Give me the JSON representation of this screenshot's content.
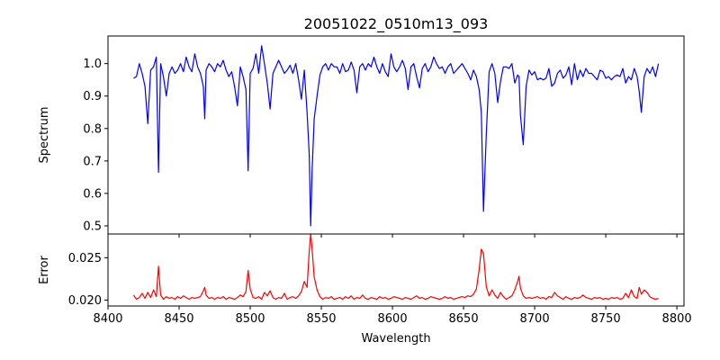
{
  "chart_data": [
    {
      "type": "line",
      "title": "20051022_0510m13_093",
      "xlabel": "",
      "ylabel": "Spectrum",
      "xlim": [
        8400,
        8805
      ],
      "ylim": [
        0.475,
        1.085
      ],
      "xticks": [
        8400,
        8450,
        8500,
        8550,
        8600,
        8650,
        8700,
        8750,
        8800
      ],
      "yticks": [
        0.5,
        0.6,
        0.7,
        0.8,
        0.9,
        1.0
      ],
      "ytick_labels": [
        "0.5",
        "0.6",
        "0.7",
        "0.8",
        "0.9",
        "1.0"
      ],
      "grid": false,
      "series": [
        {
          "color": "#0000ff",
          "x": [
            8418,
            8420,
            8422,
            8424,
            8426,
            8428,
            8430,
            8432,
            8434,
            8435.5,
            8437,
            8439,
            8441,
            8443,
            8445,
            8447,
            8449,
            8451,
            8453,
            8455,
            8457,
            8459,
            8461,
            8463,
            8465,
            8467,
            8468,
            8469,
            8471,
            8473,
            8475,
            8477,
            8479,
            8481,
            8483,
            8485,
            8487,
            8489,
            8491,
            8493,
            8495,
            8497,
            8498.5,
            8500,
            8502,
            8504,
            8506,
            8508,
            8510,
            8512,
            8514,
            8516,
            8518,
            8520,
            8522,
            8524,
            8526,
            8528,
            8530,
            8532,
            8534,
            8536,
            8538,
            8540,
            8541.5,
            8542.5,
            8543.5,
            8545,
            8547,
            8549,
            8551,
            8553,
            8555,
            8557,
            8559,
            8561,
            8563,
            8565,
            8567,
            8569,
            8571,
            8573,
            8575,
            8577,
            8579,
            8581,
            8583,
            8585,
            8587,
            8589,
            8591,
            8593,
            8595,
            8597,
            8599,
            8601,
            8603,
            8605,
            8607,
            8609,
            8611,
            8613,
            8615,
            8617,
            8619,
            8621,
            8623,
            8625,
            8627,
            8629,
            8631,
            8633,
            8635,
            8637,
            8639,
            8641,
            8643,
            8645,
            8647,
            8649,
            8651,
            8653,
            8655,
            8657,
            8659,
            8661,
            8662.5,
            8664,
            8666,
            8668,
            8670,
            8672,
            8674,
            8676,
            8678,
            8680,
            8682,
            8684,
            8686,
            8688,
            8689,
            8690,
            8692,
            8694,
            8696,
            8698,
            8700,
            8702,
            8704,
            8706,
            8708,
            8710,
            8712,
            8714,
            8716,
            8718,
            8720,
            8722,
            8724,
            8726,
            8728,
            8730,
            8732,
            8734,
            8736,
            8738,
            8740,
            8742,
            8744,
            8746,
            8748,
            8750,
            8752,
            8754,
            8756,
            8758,
            8760,
            8762,
            8764,
            8766,
            8768,
            8770,
            8772,
            8773.5,
            8775,
            8777,
            8779,
            8781,
            8783,
            8785,
            8787
          ],
          "y": [
            0.955,
            0.96,
            1.0,
            0.97,
            0.93,
            0.815,
            0.98,
            0.99,
            1.02,
            0.665,
            1.0,
            0.96,
            0.9,
            0.97,
            0.99,
            0.97,
            0.98,
            1.0,
            0.975,
            1.02,
            0.99,
            0.975,
            1.03,
            0.99,
            0.97,
            0.93,
            0.83,
            0.98,
            1.0,
            0.99,
            0.975,
            1.0,
            0.99,
            1.01,
            0.98,
            0.96,
            0.975,
            0.93,
            0.87,
            0.99,
            0.96,
            0.92,
            0.67,
            0.97,
            0.985,
            1.03,
            0.97,
            1.055,
            1.0,
            0.94,
            0.86,
            0.97,
            0.99,
            1.01,
            0.99,
            0.97,
            0.98,
            0.995,
            0.97,
            1.0,
            0.95,
            0.89,
            0.98,
            0.85,
            0.72,
            0.5,
            0.67,
            0.83,
            0.9,
            0.965,
            0.99,
            1.0,
            0.98,
            1.0,
            0.99,
            0.99,
            0.97,
            1.0,
            0.975,
            0.98,
            1.005,
            0.98,
            0.91,
            0.99,
            1.0,
            0.98,
            1.0,
            0.99,
            1.02,
            0.99,
            0.97,
            1.0,
            0.975,
            0.96,
            1.03,
            0.99,
            0.975,
            0.99,
            1.01,
            0.985,
            0.92,
            0.99,
            1.0,
            0.96,
            0.925,
            0.985,
            1.0,
            0.975,
            0.99,
            1.02,
            1.0,
            0.985,
            0.99,
            0.97,
            0.99,
            1.0,
            0.97,
            0.98,
            0.99,
            1.0,
            0.985,
            0.97,
            0.95,
            0.98,
            0.96,
            0.92,
            0.85,
            0.545,
            0.78,
            0.975,
            1.0,
            0.97,
            0.88,
            0.945,
            0.99,
            0.99,
            0.985,
            1.0,
            0.94,
            0.965,
            0.96,
            0.84,
            0.75,
            0.93,
            0.98,
            0.965,
            0.975,
            0.95,
            0.955,
            0.95,
            0.955,
            0.985,
            0.93,
            0.94,
            0.97,
            0.98,
            0.955,
            0.965,
            0.99,
            0.935,
            1.0,
            0.95,
            0.98,
            0.96,
            0.985,
            0.97,
            0.97,
            0.96,
            0.95,
            0.98,
            0.975,
            0.955,
            0.96,
            0.95,
            0.96,
            0.965,
            0.96,
            0.985,
            0.94,
            0.96,
            0.95,
            0.985,
            0.96,
            0.915,
            0.85,
            0.96,
            0.985,
            0.97,
            0.99,
            0.96,
            1.0
          ]
        }
      ]
    },
    {
      "type": "line",
      "title": "",
      "xlabel": "Wavelength",
      "ylabel": "Error",
      "xlim": [
        8400,
        8805
      ],
      "ylim": [
        0.0193,
        0.0278
      ],
      "xticks": [
        8400,
        8450,
        8500,
        8550,
        8600,
        8650,
        8700,
        8750,
        8800
      ],
      "xtick_labels": [
        "8400",
        "8450",
        "8500",
        "8550",
        "8600",
        "8650",
        "8700",
        "8750",
        "8800"
      ],
      "yticks": [
        0.02,
        0.025
      ],
      "ytick_labels": [
        "0.020",
        "0.025"
      ],
      "grid": false,
      "series": [
        {
          "color": "#ff0000",
          "x": [
            8418,
            8420,
            8422,
            8424,
            8426,
            8428,
            8430,
            8432,
            8434,
            8435.5,
            8437,
            8439,
            8441,
            8443,
            8445,
            8447,
            8449,
            8451,
            8453,
            8455,
            8457,
            8459,
            8461,
            8463,
            8465,
            8467,
            8468,
            8469,
            8471,
            8473,
            8475,
            8477,
            8479,
            8481,
            8483,
            8485,
            8487,
            8489,
            8491,
            8493,
            8495,
            8497,
            8498.5,
            8500,
            8502,
            8504,
            8506,
            8508,
            8510,
            8512,
            8514,
            8516,
            8518,
            8520,
            8522,
            8524,
            8526,
            8528,
            8530,
            8532,
            8534,
            8536,
            8538,
            8540,
            8541.5,
            8542.5,
            8543.5,
            8545,
            8547,
            8549,
            8551,
            8553,
            8555,
            8557,
            8559,
            8561,
            8563,
            8565,
            8567,
            8569,
            8571,
            8573,
            8575,
            8577,
            8579,
            8581,
            8583,
            8585,
            8587,
            8589,
            8591,
            8593,
            8595,
            8597,
            8599,
            8601,
            8603,
            8605,
            8607,
            8609,
            8611,
            8613,
            8615,
            8617,
            8619,
            8621,
            8623,
            8625,
            8627,
            8629,
            8631,
            8633,
            8635,
            8637,
            8639,
            8641,
            8643,
            8645,
            8647,
            8649,
            8651,
            8653,
            8655,
            8657,
            8659,
            8661,
            8662.5,
            8664,
            8666,
            8668,
            8670,
            8672,
            8674,
            8676,
            8678,
            8680,
            8682,
            8684,
            8686,
            8688,
            8689,
            8690,
            8692,
            8694,
            8696,
            8698,
            8700,
            8702,
            8704,
            8706,
            8708,
            8710,
            8712,
            8714,
            8716,
            8718,
            8720,
            8722,
            8724,
            8726,
            8728,
            8730,
            8732,
            8734,
            8736,
            8738,
            8740,
            8742,
            8744,
            8746,
            8748,
            8750,
            8752,
            8754,
            8756,
            8758,
            8760,
            8762,
            8764,
            8766,
            8768,
            8770,
            8772,
            8773.5,
            8775,
            8777,
            8779,
            8781,
            8783,
            8785,
            8787
          ],
          "y": [
            0.0206,
            0.0201,
            0.0203,
            0.0208,
            0.0202,
            0.0209,
            0.0203,
            0.0212,
            0.0204,
            0.024,
            0.0206,
            0.0201,
            0.0204,
            0.0202,
            0.0203,
            0.0201,
            0.0204,
            0.0202,
            0.0205,
            0.0203,
            0.0201,
            0.0203,
            0.0202,
            0.0203,
            0.0204,
            0.0211,
            0.0215,
            0.0206,
            0.0202,
            0.0203,
            0.0201,
            0.0203,
            0.0202,
            0.0204,
            0.0201,
            0.0203,
            0.0202,
            0.0201,
            0.0203,
            0.0206,
            0.0204,
            0.021,
            0.0235,
            0.0213,
            0.0203,
            0.0202,
            0.0204,
            0.0201,
            0.0209,
            0.0205,
            0.0211,
            0.0203,
            0.0201,
            0.0203,
            0.0202,
            0.0208,
            0.0201,
            0.0203,
            0.0204,
            0.0202,
            0.0205,
            0.021,
            0.0222,
            0.0215,
            0.0258,
            0.0278,
            0.026,
            0.0227,
            0.0212,
            0.0204,
            0.0201,
            0.0203,
            0.0202,
            0.0204,
            0.0201,
            0.0202,
            0.0203,
            0.0201,
            0.0204,
            0.0202,
            0.0205,
            0.0201,
            0.0203,
            0.0202,
            0.0206,
            0.0202,
            0.0201,
            0.0203,
            0.0202,
            0.0201,
            0.0204,
            0.0202,
            0.0203,
            0.0201,
            0.0202,
            0.0204,
            0.0203,
            0.0202,
            0.0201,
            0.0203,
            0.0202,
            0.0201,
            0.0203,
            0.0205,
            0.0202,
            0.0203,
            0.0201,
            0.0202,
            0.0204,
            0.0203,
            0.0202,
            0.0201,
            0.0202,
            0.0204,
            0.0202,
            0.0203,
            0.0201,
            0.0202,
            0.0203,
            0.0204,
            0.0203,
            0.0205,
            0.0204,
            0.0207,
            0.0213,
            0.0236,
            0.026,
            0.0255,
            0.0216,
            0.0205,
            0.0212,
            0.0206,
            0.0202,
            0.0209,
            0.0204,
            0.0201,
            0.0203,
            0.0205,
            0.0212,
            0.0222,
            0.0228,
            0.0214,
            0.0205,
            0.0202,
            0.0203,
            0.0202,
            0.0203,
            0.0204,
            0.0202,
            0.0203,
            0.0201,
            0.0204,
            0.0203,
            0.0209,
            0.0205,
            0.0203,
            0.0201,
            0.0204,
            0.0202,
            0.0201,
            0.0203,
            0.0202,
            0.0203,
            0.0206,
            0.0203,
            0.0202,
            0.0201,
            0.0203,
            0.0202,
            0.0203,
            0.0201,
            0.0202,
            0.0201,
            0.0203,
            0.0202,
            0.0203,
            0.0201,
            0.0202,
            0.0208,
            0.0203,
            0.0212,
            0.0204,
            0.0202,
            0.0215,
            0.0207,
            0.0212,
            0.0209,
            0.0204,
            0.0202,
            0.0201,
            0.0202
          ]
        }
      ]
    }
  ]
}
